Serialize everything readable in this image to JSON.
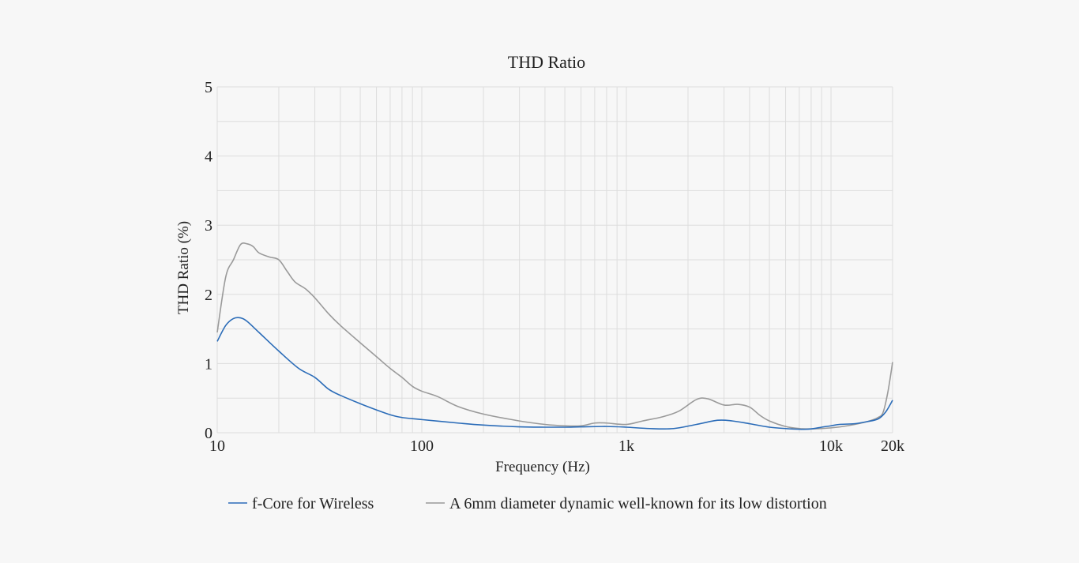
{
  "chart_data": {
    "type": "line",
    "title": "THD Ratio",
    "xlabel": "Frequency (Hz)",
    "ylabel": "THD Ratio (%)",
    "xscale": "log",
    "xlim": [
      10,
      20000
    ],
    "ylim": [
      0,
      5
    ],
    "x_ticks": [
      {
        "value": 10,
        "label": "10"
      },
      {
        "value": 100,
        "label": "100"
      },
      {
        "value": 1000,
        "label": "1k"
      },
      {
        "value": 10000,
        "label": "10k"
      },
      {
        "value": 20000,
        "label": "20k"
      }
    ],
    "y_ticks": [
      {
        "value": 0,
        "label": "0"
      },
      {
        "value": 1,
        "label": "1"
      },
      {
        "value": 2,
        "label": "2"
      },
      {
        "value": 3,
        "label": "3"
      },
      {
        "value": 4,
        "label": "4"
      },
      {
        "value": 5,
        "label": "5"
      }
    ],
    "grid": true,
    "legend_position": "bottom",
    "series": [
      {
        "name": "f-Core for Wireless",
        "color": "#2b6cb8",
        "points": [
          [
            10,
            1.32
          ],
          [
            11,
            1.55
          ],
          [
            12,
            1.65
          ],
          [
            13,
            1.66
          ],
          [
            14,
            1.61
          ],
          [
            16,
            1.45
          ],
          [
            20,
            1.18
          ],
          [
            25,
            0.93
          ],
          [
            30,
            0.8
          ],
          [
            35,
            0.63
          ],
          [
            40,
            0.54
          ],
          [
            50,
            0.42
          ],
          [
            60,
            0.33
          ],
          [
            70,
            0.26
          ],
          [
            80,
            0.22
          ],
          [
            100,
            0.19
          ],
          [
            150,
            0.14
          ],
          [
            200,
            0.11
          ],
          [
            300,
            0.085
          ],
          [
            400,
            0.08
          ],
          [
            500,
            0.08
          ],
          [
            600,
            0.085
          ],
          [
            800,
            0.09
          ],
          [
            1000,
            0.08
          ],
          [
            1300,
            0.06
          ],
          [
            1700,
            0.06
          ],
          [
            2200,
            0.12
          ],
          [
            2800,
            0.18
          ],
          [
            3300,
            0.17
          ],
          [
            4000,
            0.13
          ],
          [
            5000,
            0.08
          ],
          [
            6000,
            0.06
          ],
          [
            7000,
            0.05
          ],
          [
            8000,
            0.055
          ],
          [
            9000,
            0.08
          ],
          [
            10000,
            0.1
          ],
          [
            11000,
            0.12
          ],
          [
            13000,
            0.13
          ],
          [
            15000,
            0.16
          ],
          [
            17000,
            0.2
          ],
          [
            18500,
            0.3
          ],
          [
            20000,
            0.47
          ]
        ]
      },
      {
        "name": "A 6mm diameter dynamic well-known for its low distortion",
        "color": "#9a9a9a",
        "points": [
          [
            10,
            1.45
          ],
          [
            11,
            2.25
          ],
          [
            12,
            2.5
          ],
          [
            13,
            2.72
          ],
          [
            14,
            2.73
          ],
          [
            15,
            2.69
          ],
          [
            16,
            2.6
          ],
          [
            18,
            2.54
          ],
          [
            20,
            2.5
          ],
          [
            22,
            2.33
          ],
          [
            24,
            2.18
          ],
          [
            27,
            2.08
          ],
          [
            30,
            1.95
          ],
          [
            35,
            1.72
          ],
          [
            40,
            1.55
          ],
          [
            50,
            1.3
          ],
          [
            60,
            1.1
          ],
          [
            70,
            0.93
          ],
          [
            80,
            0.8
          ],
          [
            90,
            0.67
          ],
          [
            100,
            0.6
          ],
          [
            120,
            0.52
          ],
          [
            150,
            0.38
          ],
          [
            200,
            0.27
          ],
          [
            300,
            0.17
          ],
          [
            400,
            0.12
          ],
          [
            500,
            0.1
          ],
          [
            600,
            0.1
          ],
          [
            700,
            0.14
          ],
          [
            800,
            0.14
          ],
          [
            1000,
            0.12
          ],
          [
            1200,
            0.17
          ],
          [
            1500,
            0.23
          ],
          [
            1800,
            0.31
          ],
          [
            2200,
            0.48
          ],
          [
            2500,
            0.49
          ],
          [
            3000,
            0.4
          ],
          [
            3500,
            0.41
          ],
          [
            4000,
            0.37
          ],
          [
            4500,
            0.25
          ],
          [
            5000,
            0.17
          ],
          [
            6000,
            0.09
          ],
          [
            7000,
            0.06
          ],
          [
            8000,
            0.055
          ],
          [
            10000,
            0.07
          ],
          [
            12000,
            0.1
          ],
          [
            15000,
            0.16
          ],
          [
            17000,
            0.22
          ],
          [
            18000,
            0.3
          ],
          [
            19000,
            0.6
          ],
          [
            20000,
            1.02
          ]
        ]
      }
    ]
  }
}
